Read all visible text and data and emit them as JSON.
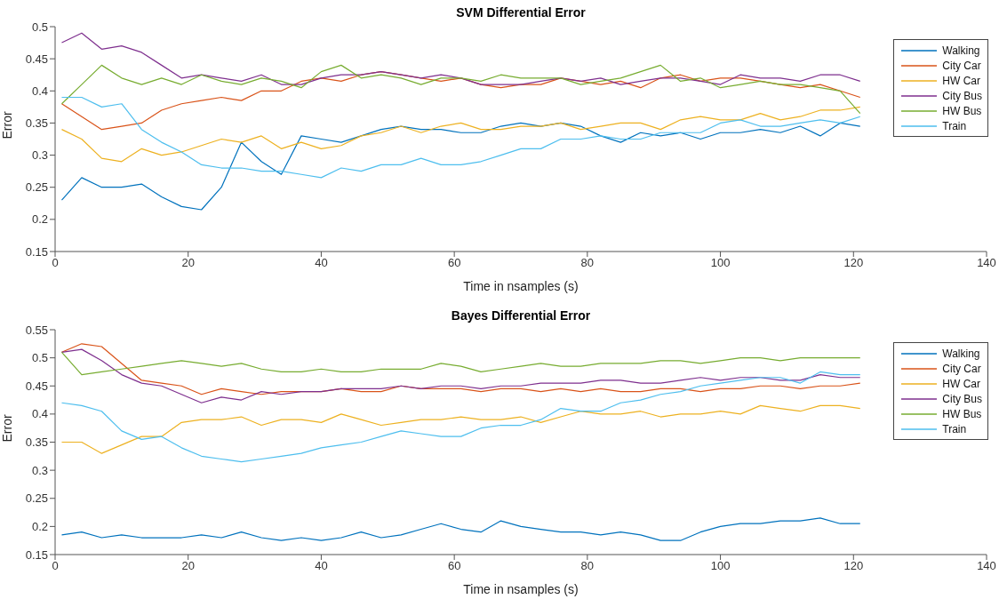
{
  "chart_data": [
    {
      "type": "line",
      "title": "SVM Differential Error",
      "xlabel": "Time in nsamples (s)",
      "ylabel": "Error",
      "xlim": [
        0,
        140
      ],
      "xticks": [
        0,
        20,
        40,
        60,
        80,
        100,
        120,
        140
      ],
      "ylim": [
        0.15,
        0.5
      ],
      "yticks": [
        0.15,
        0.2,
        0.25,
        0.3,
        0.35,
        0.4,
        0.45,
        0.5
      ],
      "grid": false,
      "legend": "top right",
      "marker": "none",
      "line_style": "solid",
      "x": [
        1,
        4,
        7,
        10,
        13,
        16,
        19,
        22,
        25,
        28,
        31,
        34,
        37,
        40,
        43,
        46,
        49,
        52,
        55,
        58,
        61,
        64,
        67,
        70,
        73,
        76,
        79,
        82,
        85,
        88,
        91,
        94,
        97,
        100,
        103,
        106,
        109,
        112,
        115,
        118,
        121
      ],
      "series": [
        {
          "name": "Walking",
          "color": "#0072bd",
          "values": [
            0.23,
            0.265,
            0.25,
            0.25,
            0.255,
            0.235,
            0.22,
            0.215,
            0.25,
            0.32,
            0.29,
            0.27,
            0.33,
            0.325,
            0.32,
            0.33,
            0.34,
            0.345,
            0.34,
            0.34,
            0.335,
            0.335,
            0.345,
            0.35,
            0.345,
            0.35,
            0.345,
            0.33,
            0.32,
            0.335,
            0.33,
            0.335,
            0.325,
            0.335,
            0.335,
            0.34,
            0.335,
            0.345,
            0.33,
            0.35,
            0.345
          ]
        },
        {
          "name": "City Car",
          "color": "#d95319",
          "values": [
            0.38,
            0.36,
            0.34,
            0.345,
            0.35,
            0.37,
            0.38,
            0.385,
            0.39,
            0.385,
            0.4,
            0.4,
            0.415,
            0.42,
            0.415,
            0.425,
            0.43,
            0.425,
            0.42,
            0.415,
            0.42,
            0.41,
            0.405,
            0.41,
            0.41,
            0.42,
            0.415,
            0.41,
            0.415,
            0.405,
            0.42,
            0.425,
            0.415,
            0.42,
            0.42,
            0.415,
            0.41,
            0.405,
            0.41,
            0.4,
            0.39
          ]
        },
        {
          "name": "HW Car",
          "color": "#edb120",
          "values": [
            0.34,
            0.325,
            0.295,
            0.29,
            0.31,
            0.3,
            0.305,
            0.315,
            0.325,
            0.32,
            0.33,
            0.31,
            0.32,
            0.31,
            0.315,
            0.33,
            0.335,
            0.345,
            0.335,
            0.345,
            0.35,
            0.34,
            0.34,
            0.345,
            0.345,
            0.35,
            0.34,
            0.345,
            0.35,
            0.35,
            0.34,
            0.355,
            0.36,
            0.355,
            0.355,
            0.365,
            0.355,
            0.36,
            0.37,
            0.37,
            0.375
          ]
        },
        {
          "name": "City Bus",
          "color": "#7e2f8e",
          "values": [
            0.475,
            0.49,
            0.465,
            0.47,
            0.46,
            0.44,
            0.42,
            0.425,
            0.42,
            0.415,
            0.425,
            0.41,
            0.41,
            0.42,
            0.425,
            0.425,
            0.43,
            0.425,
            0.42,
            0.425,
            0.42,
            0.41,
            0.41,
            0.41,
            0.415,
            0.42,
            0.415,
            0.42,
            0.41,
            0.415,
            0.42,
            0.42,
            0.415,
            0.41,
            0.425,
            0.42,
            0.42,
            0.415,
            0.425,
            0.425,
            0.415
          ]
        },
        {
          "name": "HW Bus",
          "color": "#77ac30",
          "values": [
            0.38,
            0.41,
            0.44,
            0.42,
            0.41,
            0.42,
            0.41,
            0.425,
            0.415,
            0.41,
            0.42,
            0.415,
            0.405,
            0.43,
            0.44,
            0.42,
            0.425,
            0.42,
            0.41,
            0.42,
            0.42,
            0.415,
            0.425,
            0.42,
            0.42,
            0.42,
            0.41,
            0.415,
            0.42,
            0.43,
            0.44,
            0.415,
            0.42,
            0.405,
            0.41,
            0.415,
            0.41,
            0.41,
            0.405,
            0.4,
            0.365
          ]
        },
        {
          "name": "Train",
          "color": "#4dbeee",
          "values": [
            0.39,
            0.39,
            0.375,
            0.38,
            0.34,
            0.32,
            0.305,
            0.285,
            0.28,
            0.28,
            0.275,
            0.275,
            0.27,
            0.265,
            0.28,
            0.275,
            0.285,
            0.285,
            0.295,
            0.285,
            0.285,
            0.29,
            0.3,
            0.31,
            0.31,
            0.325,
            0.325,
            0.33,
            0.325,
            0.325,
            0.335,
            0.335,
            0.335,
            0.35,
            0.355,
            0.345,
            0.345,
            0.35,
            0.355,
            0.35,
            0.36
          ]
        }
      ]
    },
    {
      "type": "line",
      "title": "Bayes Differential Error",
      "xlabel": "Time in nsamples (s)",
      "ylabel": "Error",
      "xlim": [
        0,
        140
      ],
      "xticks": [
        0,
        20,
        40,
        60,
        80,
        100,
        120,
        140
      ],
      "ylim": [
        0.15,
        0.55
      ],
      "yticks": [
        0.15,
        0.2,
        0.25,
        0.3,
        0.35,
        0.4,
        0.45,
        0.5,
        0.55
      ],
      "grid": false,
      "legend": "top right",
      "marker": "none",
      "line_style": "solid",
      "x": [
        1,
        4,
        7,
        10,
        13,
        16,
        19,
        22,
        25,
        28,
        31,
        34,
        37,
        40,
        43,
        46,
        49,
        52,
        55,
        58,
        61,
        64,
        67,
        70,
        73,
        76,
        79,
        82,
        85,
        88,
        91,
        94,
        97,
        100,
        103,
        106,
        109,
        112,
        115,
        118,
        121
      ],
      "series": [
        {
          "name": "Walking",
          "color": "#0072bd",
          "values": [
            0.185,
            0.19,
            0.18,
            0.185,
            0.18,
            0.18,
            0.18,
            0.185,
            0.18,
            0.19,
            0.18,
            0.175,
            0.18,
            0.175,
            0.18,
            0.19,
            0.18,
            0.185,
            0.195,
            0.205,
            0.195,
            0.19,
            0.21,
            0.2,
            0.195,
            0.19,
            0.19,
            0.185,
            0.19,
            0.185,
            0.175,
            0.175,
            0.19,
            0.2,
            0.205,
            0.205,
            0.21,
            0.21,
            0.215,
            0.205,
            0.205
          ]
        },
        {
          "name": "City Car",
          "color": "#d95319",
          "values": [
            0.51,
            0.525,
            0.52,
            0.49,
            0.46,
            0.455,
            0.45,
            0.435,
            0.445,
            0.44,
            0.435,
            0.44,
            0.44,
            0.44,
            0.445,
            0.44,
            0.44,
            0.45,
            0.445,
            0.445,
            0.445,
            0.44,
            0.445,
            0.445,
            0.44,
            0.445,
            0.44,
            0.445,
            0.44,
            0.44,
            0.445,
            0.445,
            0.44,
            0.445,
            0.445,
            0.45,
            0.45,
            0.445,
            0.45,
            0.45,
            0.455
          ]
        },
        {
          "name": "HW Car",
          "color": "#edb120",
          "values": [
            0.35,
            0.35,
            0.33,
            0.345,
            0.36,
            0.36,
            0.385,
            0.39,
            0.39,
            0.395,
            0.38,
            0.39,
            0.39,
            0.385,
            0.4,
            0.39,
            0.38,
            0.385,
            0.39,
            0.39,
            0.395,
            0.39,
            0.39,
            0.395,
            0.385,
            0.395,
            0.405,
            0.4,
            0.4,
            0.405,
            0.395,
            0.4,
            0.4,
            0.405,
            0.4,
            0.415,
            0.41,
            0.405,
            0.415,
            0.415,
            0.41
          ]
        },
        {
          "name": "City Bus",
          "color": "#7e2f8e",
          "values": [
            0.51,
            0.515,
            0.495,
            0.47,
            0.455,
            0.45,
            0.435,
            0.42,
            0.43,
            0.425,
            0.44,
            0.435,
            0.44,
            0.44,
            0.445,
            0.445,
            0.445,
            0.45,
            0.445,
            0.45,
            0.45,
            0.445,
            0.45,
            0.45,
            0.455,
            0.455,
            0.455,
            0.46,
            0.46,
            0.455,
            0.455,
            0.46,
            0.465,
            0.46,
            0.465,
            0.465,
            0.46,
            0.46,
            0.47,
            0.465,
            0.465
          ]
        },
        {
          "name": "HW Bus",
          "color": "#77ac30",
          "values": [
            0.51,
            0.47,
            0.475,
            0.48,
            0.485,
            0.49,
            0.495,
            0.49,
            0.485,
            0.49,
            0.48,
            0.475,
            0.475,
            0.48,
            0.475,
            0.475,
            0.48,
            0.48,
            0.48,
            0.49,
            0.485,
            0.475,
            0.48,
            0.485,
            0.49,
            0.485,
            0.485,
            0.49,
            0.49,
            0.49,
            0.495,
            0.495,
            0.49,
            0.495,
            0.5,
            0.5,
            0.495,
            0.5,
            0.5,
            0.5,
            0.5
          ]
        },
        {
          "name": "Train",
          "color": "#4dbeee",
          "values": [
            0.42,
            0.415,
            0.405,
            0.37,
            0.355,
            0.36,
            0.34,
            0.325,
            0.32,
            0.315,
            0.32,
            0.325,
            0.33,
            0.34,
            0.345,
            0.35,
            0.36,
            0.37,
            0.365,
            0.36,
            0.36,
            0.375,
            0.38,
            0.38,
            0.39,
            0.41,
            0.405,
            0.405,
            0.42,
            0.425,
            0.435,
            0.44,
            0.45,
            0.455,
            0.46,
            0.465,
            0.465,
            0.455,
            0.475,
            0.47,
            0.47
          ]
        }
      ]
    }
  ]
}
